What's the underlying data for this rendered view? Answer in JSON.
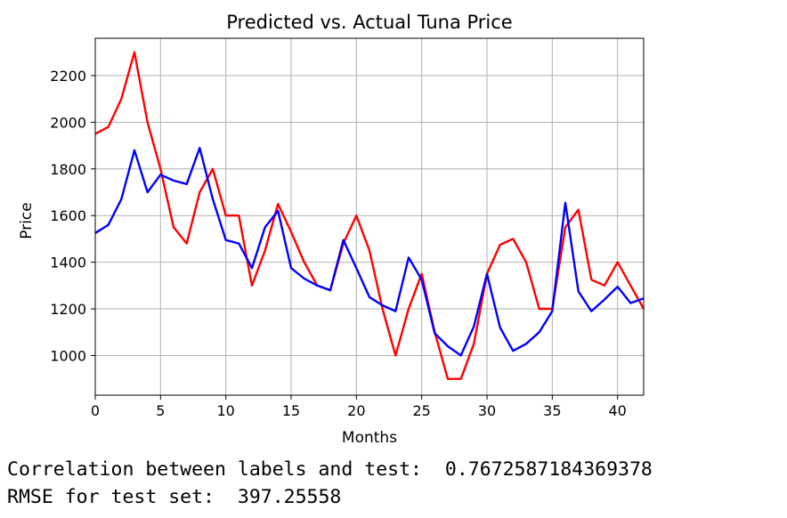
{
  "chart_data": {
    "type": "line",
    "title": "Predicted vs. Actual Tuna Price",
    "xlabel": "Months",
    "ylabel": "Price",
    "xlim": [
      0,
      42
    ],
    "ylim": [
      830,
      2360
    ],
    "xticks": [
      0,
      5,
      10,
      15,
      20,
      25,
      30,
      35,
      40
    ],
    "yticks": [
      1000,
      1200,
      1400,
      1600,
      1800,
      2000,
      2200
    ],
    "grid": true,
    "legend": "none",
    "series": [
      {
        "color": "#ff0000",
        "x": [
          0,
          1,
          2,
          3,
          4,
          5,
          6,
          7,
          8,
          9,
          10,
          11,
          12,
          13,
          14,
          15,
          16,
          17,
          18,
          19,
          20,
          21,
          22,
          23,
          24,
          25,
          26,
          27,
          28,
          29,
          30,
          31,
          32,
          33,
          34,
          35,
          36,
          37,
          38,
          39,
          40,
          41,
          42
        ],
        "values": [
          1950,
          1980,
          2100,
          2300,
          2000,
          1800,
          1550,
          1480,
          1700,
          1800,
          1600,
          1600,
          1300,
          1450,
          1650,
          1530,
          1400,
          1300,
          1280,
          1480,
          1600,
          1450,
          1200,
          1000,
          1200,
          1350,
          1100,
          900,
          900,
          1050,
          1350,
          1475,
          1500,
          1400,
          1200,
          1200,
          1550,
          1625,
          1325,
          1300,
          1400,
          1300,
          1200
        ]
      },
      {
        "color": "#0000ff",
        "x": [
          0,
          1,
          2,
          3,
          4,
          5,
          6,
          7,
          8,
          9,
          10,
          11,
          12,
          13,
          14,
          15,
          16,
          17,
          18,
          19,
          20,
          21,
          22,
          23,
          24,
          25,
          26,
          27,
          28,
          29,
          30,
          31,
          32,
          33,
          34,
          35,
          36,
          37,
          38,
          39,
          40,
          41,
          42
        ],
        "values": [
          1525,
          1560,
          1670,
          1880,
          1700,
          1775,
          1750,
          1735,
          1890,
          1670,
          1495,
          1480,
          1375,
          1550,
          1620,
          1375,
          1330,
          1300,
          1280,
          1495,
          1375,
          1250,
          1215,
          1190,
          1420,
          1325,
          1095,
          1040,
          1000,
          1125,
          1350,
          1120,
          1020,
          1050,
          1100,
          1190,
          1655,
          1275,
          1190,
          1240,
          1295,
          1225,
          1245
        ]
      }
    ]
  },
  "output": {
    "correlation_line": "Correlation between labels and test:  0.7672587184369378",
    "rmse_line": "RMSE for test set:  397.25558"
  }
}
